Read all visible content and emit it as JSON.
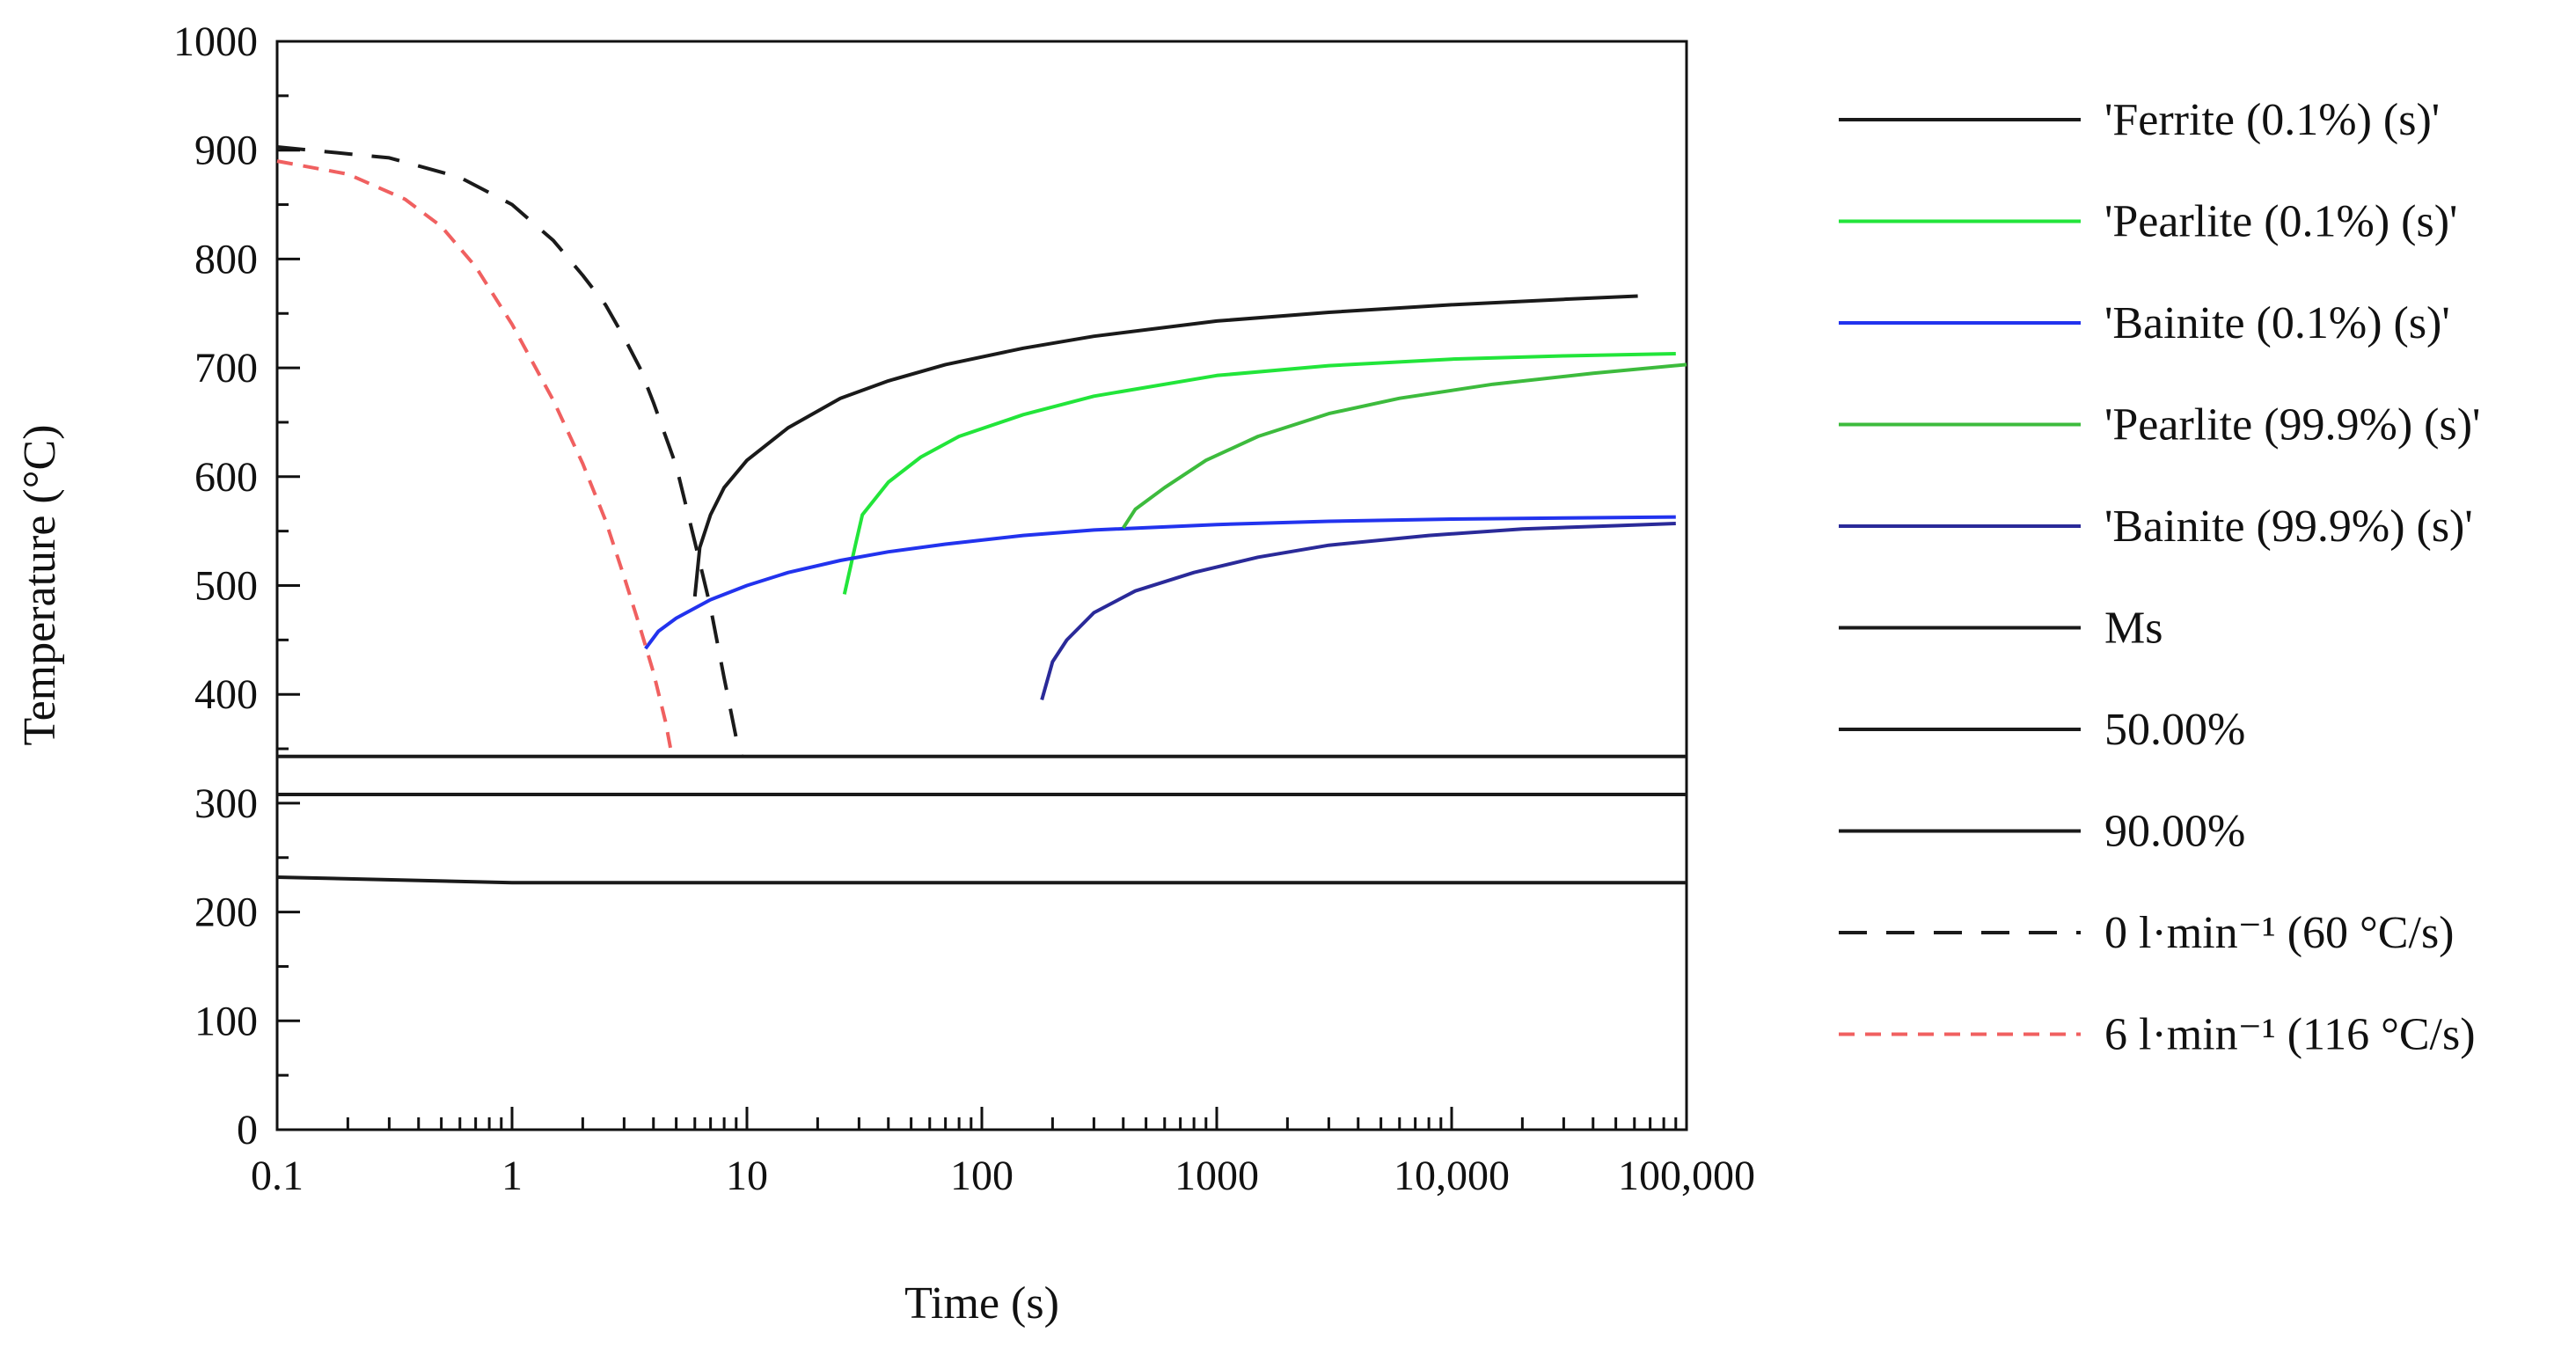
{
  "chart_data": {
    "type": "line",
    "title": "",
    "xlabel": "Time (s)",
    "ylabel": "Temperature (°C)",
    "xscale": "log",
    "xlim": [
      0.1,
      100000
    ],
    "ylim": [
      0,
      1000
    ],
    "grid": false,
    "legend_position": "right",
    "x_ticks": [
      {
        "value": 0.1,
        "label": "0.1"
      },
      {
        "value": 1,
        "label": "1"
      },
      {
        "value": 10,
        "label": "10"
      },
      {
        "value": 100,
        "label": "100"
      },
      {
        "value": 1000,
        "label": "1000"
      },
      {
        "value": 10000,
        "label": "10,000"
      },
      {
        "value": 100000,
        "label": "100,000"
      }
    ],
    "y_ticks": [
      {
        "value": 0,
        "label": "0"
      },
      {
        "value": 100,
        "label": "100"
      },
      {
        "value": 200,
        "label": "200"
      },
      {
        "value": 300,
        "label": "300"
      },
      {
        "value": 400,
        "label": "400"
      },
      {
        "value": 500,
        "label": "500"
      },
      {
        "value": 600,
        "label": "600"
      },
      {
        "value": 700,
        "label": "700"
      },
      {
        "value": 800,
        "label": "800"
      },
      {
        "value": 900,
        "label": "900"
      },
      {
        "value": 1000,
        "label": "1000"
      }
    ],
    "series": [
      {
        "name": "'Ferrite (0.1%) (s)'",
        "color": "#1a1a1a",
        "dash": "solid",
        "points": [
          [
            6,
            490
          ],
          [
            6.3,
            535
          ],
          [
            7,
            565
          ],
          [
            8,
            590
          ],
          [
            10,
            615
          ],
          [
            15,
            645
          ],
          [
            25,
            672
          ],
          [
            40,
            688
          ],
          [
            70,
            703
          ],
          [
            150,
            718
          ],
          [
            300,
            729
          ],
          [
            1000,
            743
          ],
          [
            3000,
            751
          ],
          [
            10000,
            758
          ],
          [
            30000,
            763
          ],
          [
            62000,
            766
          ]
        ]
      },
      {
        "name": "'Pearlite (0.1%) (s)'",
        "color": "#22e53a",
        "dash": "solid",
        "points": [
          [
            26,
            492
          ],
          [
            29,
            538
          ],
          [
            31,
            565
          ],
          [
            40,
            595
          ],
          [
            55,
            618
          ],
          [
            80,
            637
          ],
          [
            150,
            657
          ],
          [
            300,
            674
          ],
          [
            1000,
            693
          ],
          [
            3000,
            702
          ],
          [
            10000,
            708
          ],
          [
            30000,
            711
          ],
          [
            90000,
            713
          ]
        ]
      },
      {
        "name": "'Bainite (0.1%) (s)'",
        "color": "#2233ee",
        "dash": "solid",
        "points": [
          [
            3.7,
            442
          ],
          [
            4.2,
            458
          ],
          [
            5,
            470
          ],
          [
            7,
            487
          ],
          [
            10,
            500
          ],
          [
            15,
            512
          ],
          [
            25,
            523
          ],
          [
            40,
            531
          ],
          [
            70,
            538
          ],
          [
            150,
            546
          ],
          [
            300,
            551
          ],
          [
            1000,
            556
          ],
          [
            3000,
            559
          ],
          [
            10000,
            561
          ],
          [
            30000,
            562
          ],
          [
            90000,
            563
          ]
        ]
      },
      {
        "name": "'Pearlite (99.9%) (s)'",
        "color": "#3dbb3d",
        "dash": "solid",
        "points": [
          [
            400,
            553
          ],
          [
            450,
            570
          ],
          [
            600,
            590
          ],
          [
            900,
            615
          ],
          [
            1500,
            637
          ],
          [
            3000,
            658
          ],
          [
            6000,
            672
          ],
          [
            15000,
            685
          ],
          [
            40000,
            695
          ],
          [
            100000,
            703
          ]
        ]
      },
      {
        "name": "'Bainite (99.9%) (s)'",
        "color": "#2a2a99",
        "dash": "solid",
        "points": [
          [
            180,
            395
          ],
          [
            200,
            430
          ],
          [
            230,
            450
          ],
          [
            300,
            475
          ],
          [
            450,
            495
          ],
          [
            800,
            512
          ],
          [
            1500,
            526
          ],
          [
            3000,
            537
          ],
          [
            8000,
            546
          ],
          [
            20000,
            552
          ],
          [
            50000,
            555
          ],
          [
            90000,
            557
          ]
        ]
      },
      {
        "name": "Ms",
        "color": "#1a1a1a",
        "dash": "solid",
        "points": [
          [
            0.1,
            343
          ],
          [
            100000,
            343
          ]
        ]
      },
      {
        "name": "50.00%",
        "color": "#1a1a1a",
        "dash": "solid",
        "points": [
          [
            0.1,
            308
          ],
          [
            100000,
            308
          ]
        ]
      },
      {
        "name": "90.00%",
        "color": "#1a1a1a",
        "dash": "solid",
        "points": [
          [
            0.1,
            232
          ],
          [
            1,
            227
          ],
          [
            100000,
            227
          ]
        ]
      },
      {
        "name": "0 l·min⁻¹ (60 °C/s)",
        "color": "#1a1a1a",
        "dash": "long-dash",
        "points": [
          [
            0.1,
            903
          ],
          [
            0.3,
            893
          ],
          [
            0.6,
            875
          ],
          [
            1,
            850
          ],
          [
            1.5,
            817
          ],
          [
            2,
            785
          ],
          [
            2.5,
            758
          ],
          [
            3,
            728
          ],
          [
            3.5,
            700
          ],
          [
            4,
            668
          ],
          [
            5,
            610
          ],
          [
            6,
            540
          ],
          [
            7,
            480
          ],
          [
            8,
            415
          ],
          [
            9,
            360
          ],
          [
            9.5,
            343
          ]
        ]
      },
      {
        "name": "6 l·min⁻¹ (116 °C/s)",
        "color": "#f06060",
        "dash": "short-dash",
        "points": [
          [
            0.1,
            890
          ],
          [
            0.2,
            878
          ],
          [
            0.35,
            855
          ],
          [
            0.5,
            830
          ],
          [
            0.7,
            793
          ],
          [
            1,
            740
          ],
          [
            1.5,
            670
          ],
          [
            2,
            612
          ],
          [
            2.5,
            560
          ],
          [
            3,
            508
          ],
          [
            3.5,
            462
          ],
          [
            4,
            420
          ],
          [
            4.5,
            375
          ],
          [
            4.8,
            343
          ]
        ]
      }
    ]
  }
}
